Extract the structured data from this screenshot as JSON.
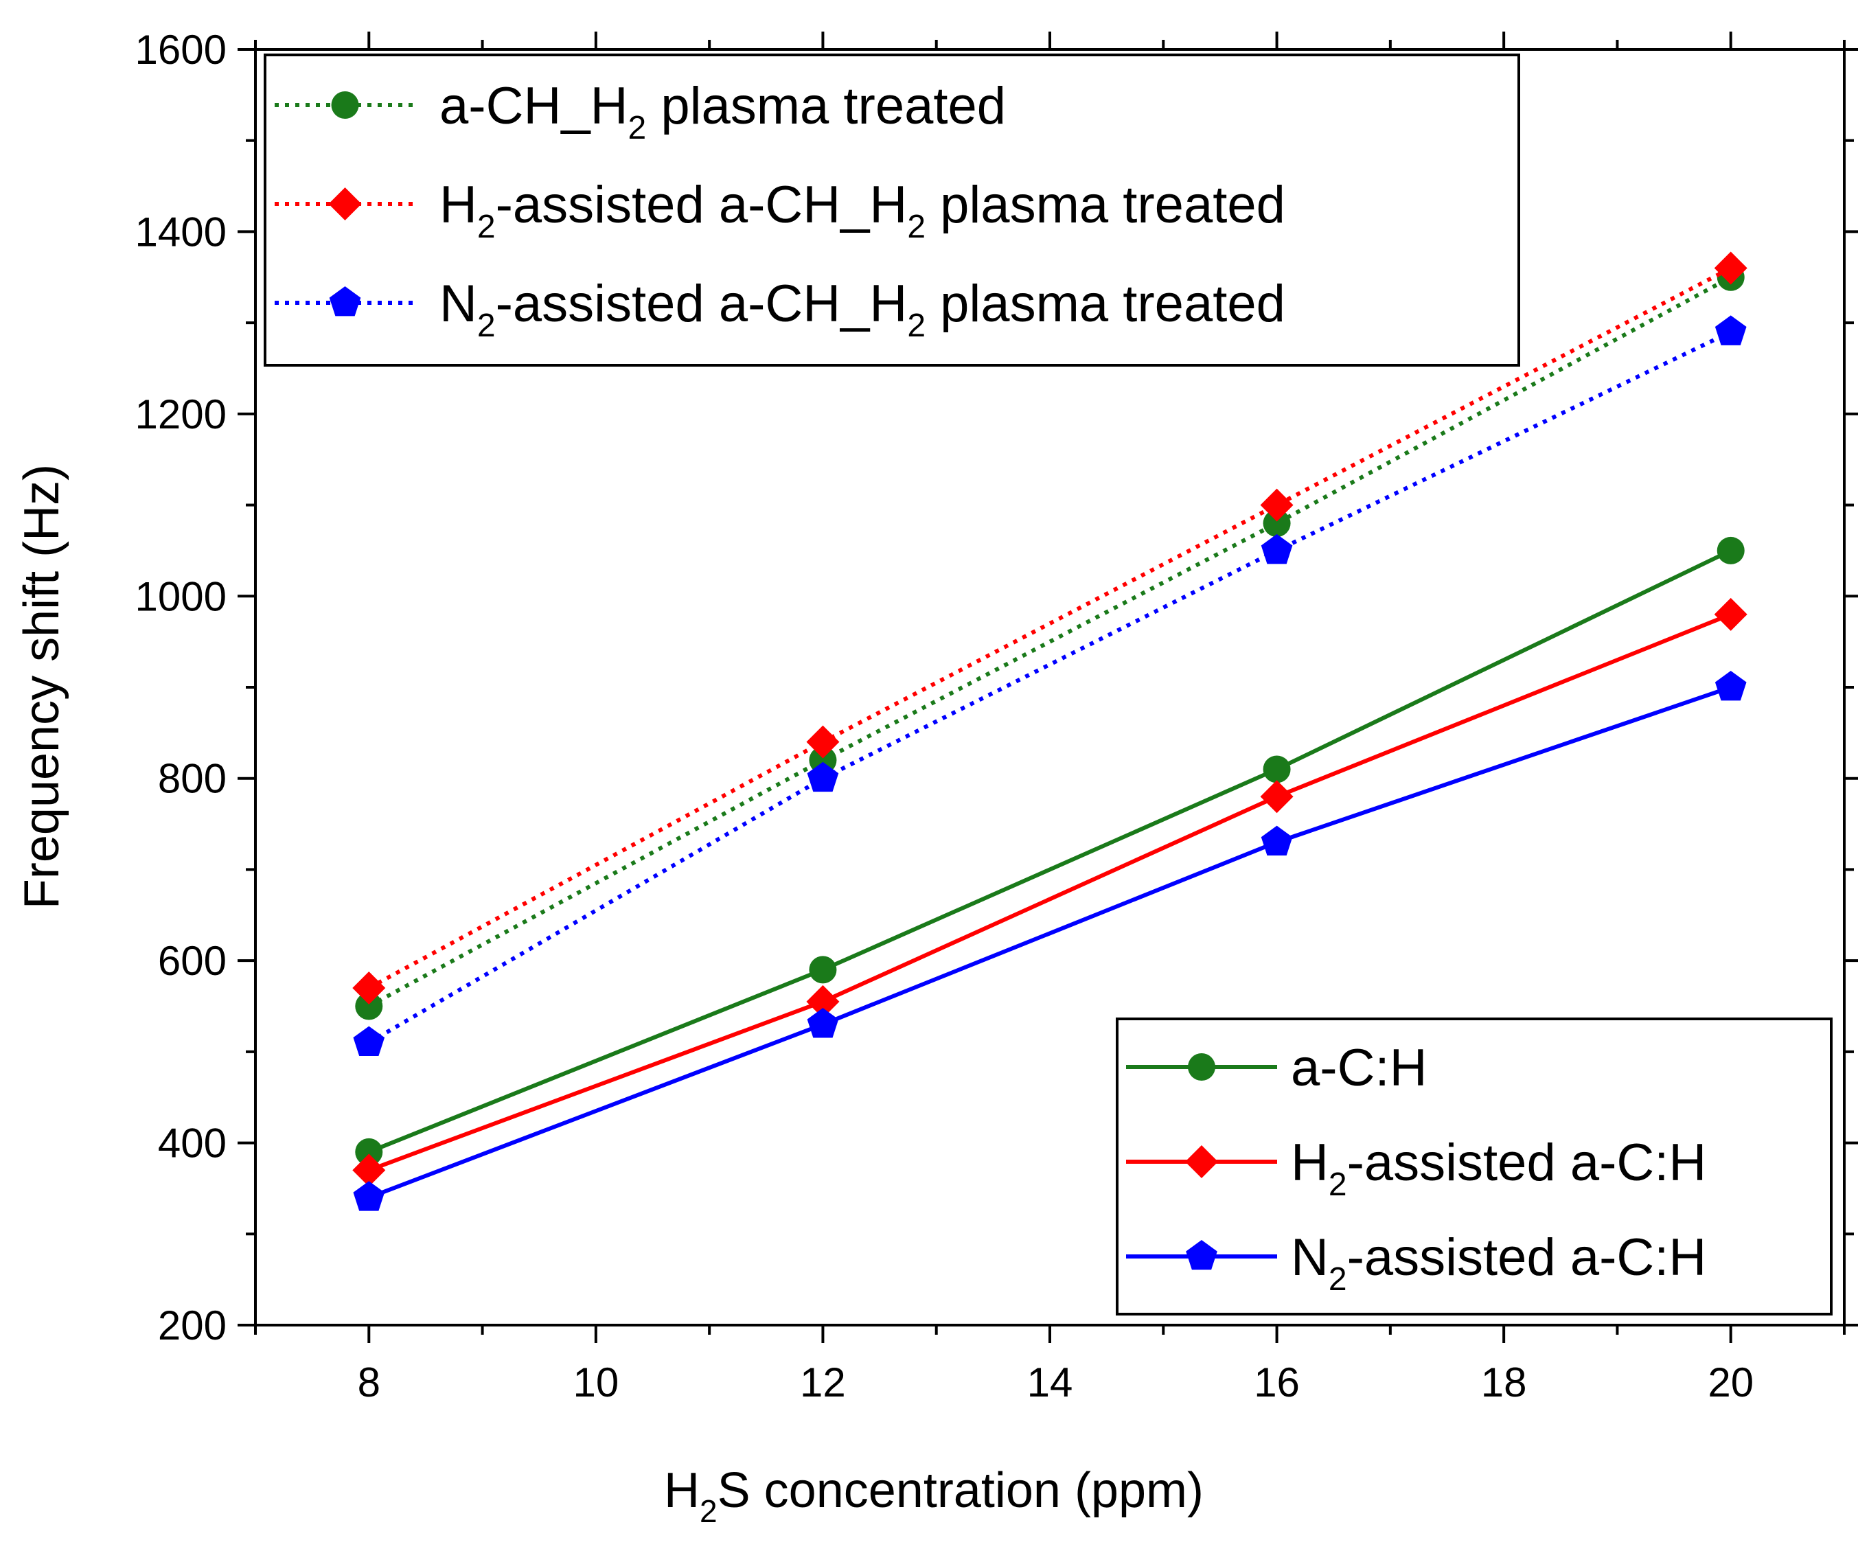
{
  "chart_data": {
    "type": "line",
    "title": "",
    "xlabel": {
      "main": "H",
      "sub": "2",
      "rest": "S concentration (ppm)"
    },
    "ylabel": "Frequency shift (Hz)",
    "xlim": [
      7,
      21
    ],
    "ylim": [
      200,
      1600
    ],
    "xticks": [
      8,
      10,
      12,
      14,
      16,
      18,
      20
    ],
    "yticks": [
      200,
      400,
      600,
      800,
      1000,
      1200,
      1400,
      1600
    ],
    "x": [
      8,
      12,
      16,
      20
    ],
    "series": [
      {
        "name": "a-CH_H2 plasma treated",
        "color": "#1a7a1a",
        "style": "dotted",
        "marker": "circle",
        "values": [
          550,
          820,
          1080,
          1350
        ],
        "label_parts": [
          {
            "t": "a-CH_H"
          },
          {
            "t": "2",
            "sub": true
          },
          {
            "t": " plasma treated"
          }
        ]
      },
      {
        "name": "H2-assisted a-CH_H2 plasma treated",
        "color": "#ff0000",
        "style": "dotted",
        "marker": "diamond",
        "values": [
          570,
          840,
          1100,
          1360
        ],
        "label_parts": [
          {
            "t": "H"
          },
          {
            "t": "2",
            "sub": true
          },
          {
            "t": "-assisted a-CH_H"
          },
          {
            "t": "2",
            "sub": true
          },
          {
            "t": " plasma treated"
          }
        ]
      },
      {
        "name": "N2-assisted a-CH_H2 plasma treated",
        "color": "#0000ff",
        "style": "dotted",
        "marker": "pentagon",
        "values": [
          510,
          800,
          1050,
          1290
        ],
        "label_parts": [
          {
            "t": "N"
          },
          {
            "t": "2",
            "sub": true
          },
          {
            "t": "-assisted a-CH_H"
          },
          {
            "t": "2",
            "sub": true
          },
          {
            "t": " plasma treated"
          }
        ]
      },
      {
        "name": "a-C:H",
        "color": "#1a7a1a",
        "style": "solid",
        "marker": "circle",
        "values": [
          390,
          590,
          810,
          1050
        ],
        "label_parts": [
          {
            "t": "a-C:H"
          }
        ]
      },
      {
        "name": "H2-assisted a-C:H",
        "color": "#ff0000",
        "style": "solid",
        "marker": "diamond",
        "values": [
          370,
          555,
          780,
          980
        ],
        "label_parts": [
          {
            "t": "H"
          },
          {
            "t": "2",
            "sub": true
          },
          {
            "t": "-assisted a-C:H"
          }
        ]
      },
      {
        "name": "N2-assisted a-C:H",
        "color": "#0000ff",
        "style": "solid",
        "marker": "pentagon",
        "values": [
          340,
          530,
          730,
          900
        ],
        "label_parts": [
          {
            "t": "N"
          },
          {
            "t": "2",
            "sub": true
          },
          {
            "t": "-assisted a-C:H"
          }
        ]
      }
    ],
    "legends": [
      {
        "placement": "top-left",
        "series": [
          0,
          1,
          2
        ]
      },
      {
        "placement": "bottom-right",
        "series": [
          3,
          4,
          5
        ]
      }
    ]
  }
}
